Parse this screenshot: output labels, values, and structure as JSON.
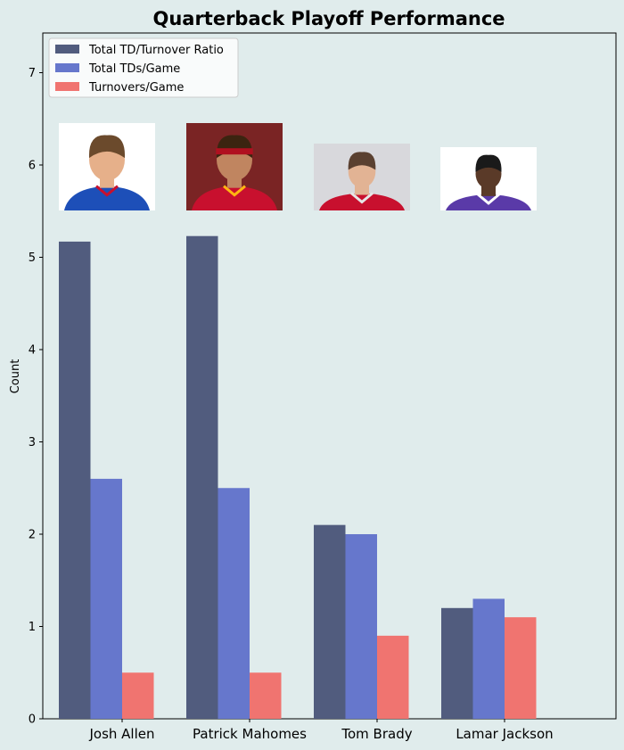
{
  "chart_data": {
    "type": "bar",
    "title": "Quarterback Playoff Performance",
    "xlabel": "",
    "ylabel": "Count",
    "ylim": [
      0,
      7.43
    ],
    "yticks": [
      0,
      1,
      2,
      3,
      4,
      5,
      6,
      7
    ],
    "categories": [
      "Josh Allen",
      "Patrick Mahomes",
      "Tom Brady",
      "Lamar Jackson"
    ],
    "series": [
      {
        "name": "Total TD/Turnover Ratio",
        "values": [
          5.17,
          5.23,
          2.1,
          1.2
        ],
        "color": "#515c7e"
      },
      {
        "name": "Total TDs/Game",
        "values": [
          2.6,
          2.5,
          2.0,
          1.3
        ],
        "color": "#6677cc"
      },
      {
        "name": "Turnovers/Game",
        "values": [
          0.5,
          0.5,
          0.9,
          1.1
        ],
        "color": "#f07470"
      }
    ],
    "legend_position": "top-left",
    "grid": false,
    "player_photos": [
      {
        "player": "Josh Allen",
        "jersey_color": "#1d4fb8",
        "accent": "#c8102e"
      },
      {
        "player": "Patrick Mahomes",
        "jersey_color": "#c8102e",
        "accent": "#ffb612"
      },
      {
        "player": "Tom Brady",
        "jersey_color": "#c8102e",
        "accent": "#e6e6e6"
      },
      {
        "player": "Lamar Jackson",
        "jersey_color": "#5a3aa8",
        "accent": "#ffffff"
      }
    ]
  }
}
